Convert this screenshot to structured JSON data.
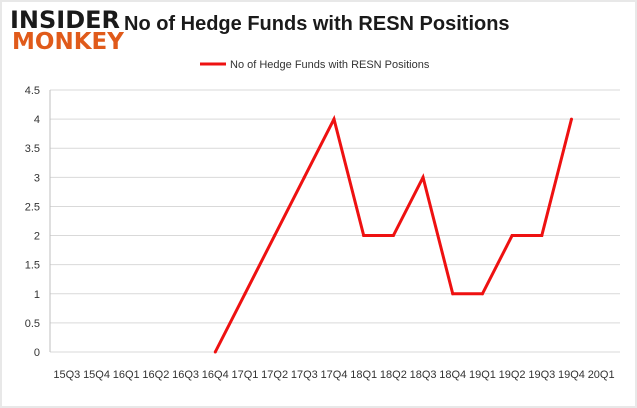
{
  "logo": {
    "line1": "INSIDER",
    "line2": "MONKEY"
  },
  "colors": {
    "series": "#ee1111",
    "grid": "#d9d9d9",
    "logo_accent": "#e05a1a"
  },
  "chart_data": {
    "type": "line",
    "title": "No of Hedge Funds with RESN Positions",
    "xlabel": "",
    "ylabel": "",
    "legend_position": "top",
    "grid": true,
    "ylim": [
      0,
      4.5
    ],
    "yticks": [
      "0",
      "0.5",
      "1",
      "1.5",
      "2",
      "2.5",
      "3",
      "3.5",
      "4",
      "4.5"
    ],
    "categories": [
      "15Q3",
      "15Q4",
      "16Q1",
      "16Q2",
      "16Q3",
      "16Q4",
      "17Q1",
      "17Q2",
      "17Q3",
      "17Q4",
      "18Q1",
      "18Q2",
      "18Q3",
      "18Q4",
      "19Q1",
      "19Q2",
      "19Q3",
      "19Q4",
      "20Q1"
    ],
    "x_tick_labels": [
      "15Q3",
      "15Q4",
      "16Q1",
      "16Q2",
      "16Q3",
      "16Q4",
      "17Q1",
      "17Q2",
      "17Q3",
      "17Q4",
      "18Q1",
      "18Q2",
      "18Q3",
      "18Q4",
      "19Q1",
      "19Q2",
      "19Q3",
      "19Q4",
      "20Q1"
    ],
    "series": [
      {
        "name": "No of Hedge Funds with RESN  Positions",
        "values": [
          null,
          null,
          null,
          null,
          null,
          0,
          1,
          2,
          3,
          4,
          2,
          2,
          3,
          1,
          1,
          2,
          2,
          4,
          null
        ],
        "color": "#ee1111"
      }
    ]
  }
}
